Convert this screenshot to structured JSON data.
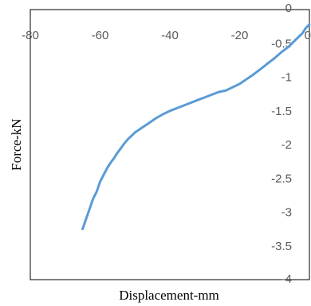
{
  "chart_data": {
    "type": "line",
    "title": "",
    "xlabel": "Displacement-mm",
    "ylabel": "Force-kN",
    "xlim": [
      -80,
      0
    ],
    "ylim": [
      -4,
      0
    ],
    "xticks": [
      -80,
      -60,
      -40,
      -20,
      0
    ],
    "xtick_labels": [
      "-80",
      "-60",
      "-40",
      "-20",
      "0"
    ],
    "yticks": [
      0,
      -0.5,
      -1,
      -1.5,
      -2,
      -2.5,
      -3,
      -3.5,
      -4
    ],
    "ytick_labels": [
      "0",
      "-0.5",
      "-1",
      "-1.5",
      "-2",
      "-2.5",
      "-3",
      "-3.5",
      "-4"
    ],
    "grid": false,
    "legend": "none",
    "series": [
      {
        "color": "#5B9BD5",
        "x": [
          -65,
          -64,
          -63,
          -62,
          -61,
          -60,
          -59,
          -58,
          -57,
          -56,
          -55,
          -54,
          -53,
          -52,
          -51,
          -50,
          -48,
          -46,
          -44,
          -42,
          -40,
          -38,
          -36,
          -34,
          -32,
          -30,
          -28,
          -26,
          -24,
          -22,
          -20,
          -18,
          -16,
          -14,
          -12,
          -10,
          -8,
          -6,
          -4,
          -2,
          -1,
          0
        ],
        "y": [
          -3.25,
          -3.1,
          -2.95,
          -2.8,
          -2.7,
          -2.55,
          -2.45,
          -2.35,
          -2.27,
          -2.2,
          -2.12,
          -2.05,
          -1.98,
          -1.92,
          -1.87,
          -1.82,
          -1.75,
          -1.68,
          -1.61,
          -1.55,
          -1.5,
          -1.46,
          -1.42,
          -1.38,
          -1.34,
          -1.3,
          -1.26,
          -1.22,
          -1.2,
          -1.15,
          -1.1,
          -1.03,
          -0.96,
          -0.88,
          -0.8,
          -0.72,
          -0.63,
          -0.55,
          -0.45,
          -0.35,
          -0.27,
          -0.22
        ]
      }
    ]
  }
}
